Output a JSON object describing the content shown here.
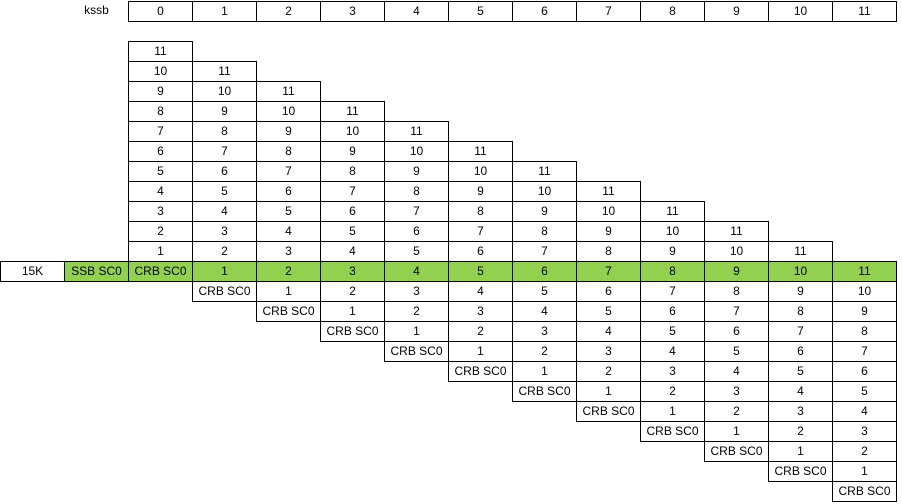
{
  "header": {
    "label": "kssb",
    "columns": [
      "0",
      "1",
      "2",
      "3",
      "4",
      "5",
      "6",
      "7",
      "8",
      "9",
      "10",
      "11"
    ]
  },
  "upper_triangle": [
    [
      "11"
    ],
    [
      "10",
      "11"
    ],
    [
      "9",
      "10",
      "11"
    ],
    [
      "8",
      "9",
      "10",
      "11"
    ],
    [
      "7",
      "8",
      "9",
      "10",
      "11"
    ],
    [
      "6",
      "7",
      "8",
      "9",
      "10",
      "11"
    ],
    [
      "5",
      "6",
      "7",
      "8",
      "9",
      "10",
      "11"
    ],
    [
      "4",
      "5",
      "6",
      "7",
      "8",
      "9",
      "10",
      "11"
    ],
    [
      "3",
      "4",
      "5",
      "6",
      "7",
      "8",
      "9",
      "10",
      "11"
    ],
    [
      "2",
      "3",
      "4",
      "5",
      "6",
      "7",
      "8",
      "9",
      "10",
      "11"
    ],
    [
      "1",
      "2",
      "3",
      "4",
      "5",
      "6",
      "7",
      "8",
      "9",
      "10",
      "11"
    ]
  ],
  "highlight_row": {
    "label": "15K",
    "ssb": "SSB SC0",
    "crb": "CRB SC0",
    "values": [
      "1",
      "2",
      "3",
      "4",
      "5",
      "6",
      "7",
      "8",
      "9",
      "10",
      "11"
    ],
    "color": "#92d050"
  },
  "lower_triangle": [
    [
      "CRB SC0",
      "1",
      "2",
      "3",
      "4",
      "5",
      "6",
      "7",
      "8",
      "9",
      "10"
    ],
    [
      "CRB SC0",
      "1",
      "2",
      "3",
      "4",
      "5",
      "6",
      "7",
      "8",
      "9"
    ],
    [
      "CRB SC0",
      "1",
      "2",
      "3",
      "4",
      "5",
      "6",
      "7",
      "8"
    ],
    [
      "CRB SC0",
      "1",
      "2",
      "3",
      "4",
      "5",
      "6",
      "7"
    ],
    [
      "CRB SC0",
      "1",
      "2",
      "3",
      "4",
      "5",
      "6"
    ],
    [
      "CRB SC0",
      "1",
      "2",
      "3",
      "4",
      "5"
    ],
    [
      "CRB SC0",
      "1",
      "2",
      "3",
      "4"
    ],
    [
      "CRB SC0",
      "1",
      "2",
      "3"
    ],
    [
      "CRB SC0",
      "1",
      "2"
    ],
    [
      "CRB SC0",
      "1"
    ],
    [
      "CRB SC0"
    ]
  ]
}
